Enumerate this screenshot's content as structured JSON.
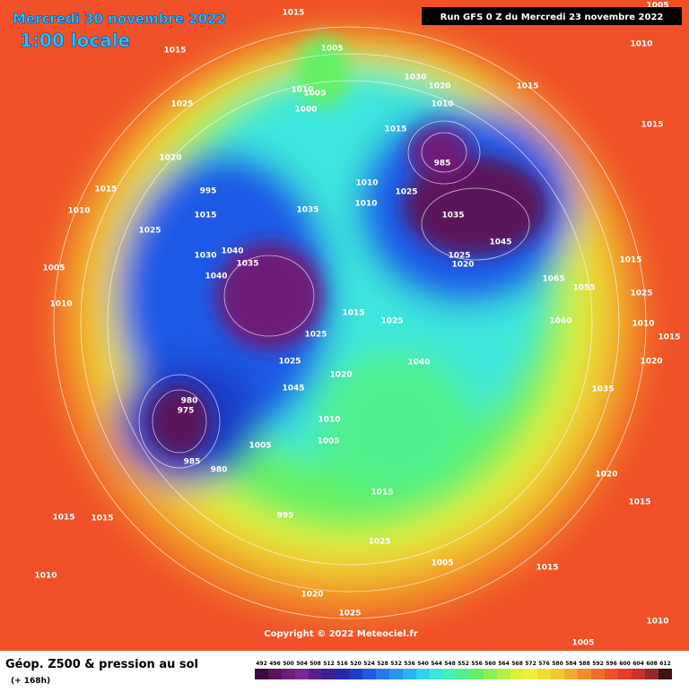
{
  "header": {
    "valid_date": "Mercredi 30 novembre 2022",
    "local_time": "1:00 locale",
    "run": "Run GFS 0 Z du Mercredi 23 novembre 2022"
  },
  "footer": {
    "title": "Géop. Z500 & pression au sol",
    "lead_time": "(+ 168h)",
    "copyright": "Copyright © 2022 Meteociel.fr"
  },
  "isobar_labels": [
    "1015",
    "1005",
    "1015",
    "1010",
    "1005",
    "1000",
    "1025",
    "1020",
    "1015",
    "1010",
    "1025",
    "995",
    "1015",
    "1040",
    "1030",
    "1035",
    "1040",
    "1035",
    "1010",
    "1010",
    "1015",
    "985",
    "1025",
    "1035",
    "1045",
    "1025",
    "1020",
    "1065",
    "1055",
    "1060",
    "1015",
    "1025",
    "1025",
    "1040",
    "1020",
    "1025",
    "1045",
    "980",
    "975",
    "985",
    "980",
    "1005",
    "1010",
    "1005",
    "995",
    "1015",
    "1025",
    "1015",
    "1015",
    "1010",
    "1020",
    "1025",
    "1015",
    "1020",
    "1015",
    "1010",
    "1005",
    "1010",
    "1015",
    "1015",
    "1015",
    "1025",
    "1010",
    "1015",
    "1020",
    "1035",
    "1005",
    "1010",
    "1020",
    "1030",
    "1010",
    "1005",
    "1005"
  ],
  "scale": {
    "values": [
      492,
      496,
      500,
      504,
      508,
      512,
      516,
      520,
      524,
      528,
      532,
      536,
      540,
      544,
      548,
      552,
      556,
      560,
      564,
      568,
      572,
      576,
      580,
      584,
      588,
      592,
      596,
      600,
      604,
      608,
      612
    ],
    "colors": [
      "#3a0a3c",
      "#5a145a",
      "#6e1e78",
      "#7a2896",
      "#5a1e8c",
      "#3c1e96",
      "#2828a8",
      "#1e3cc8",
      "#1e5ae6",
      "#2878f0",
      "#2896f0",
      "#28b4f0",
      "#32d2f0",
      "#3ce6dc",
      "#46f0b4",
      "#50f08c",
      "#64f064",
      "#8cf050",
      "#b4f046",
      "#dcf03c",
      "#f0f03c",
      "#f0dc32",
      "#f0c832",
      "#f0aa32",
      "#f08c28",
      "#f06e28",
      "#f05028",
      "#e63c28",
      "#c83228",
      "#962828",
      "#3c1414"
    ]
  }
}
